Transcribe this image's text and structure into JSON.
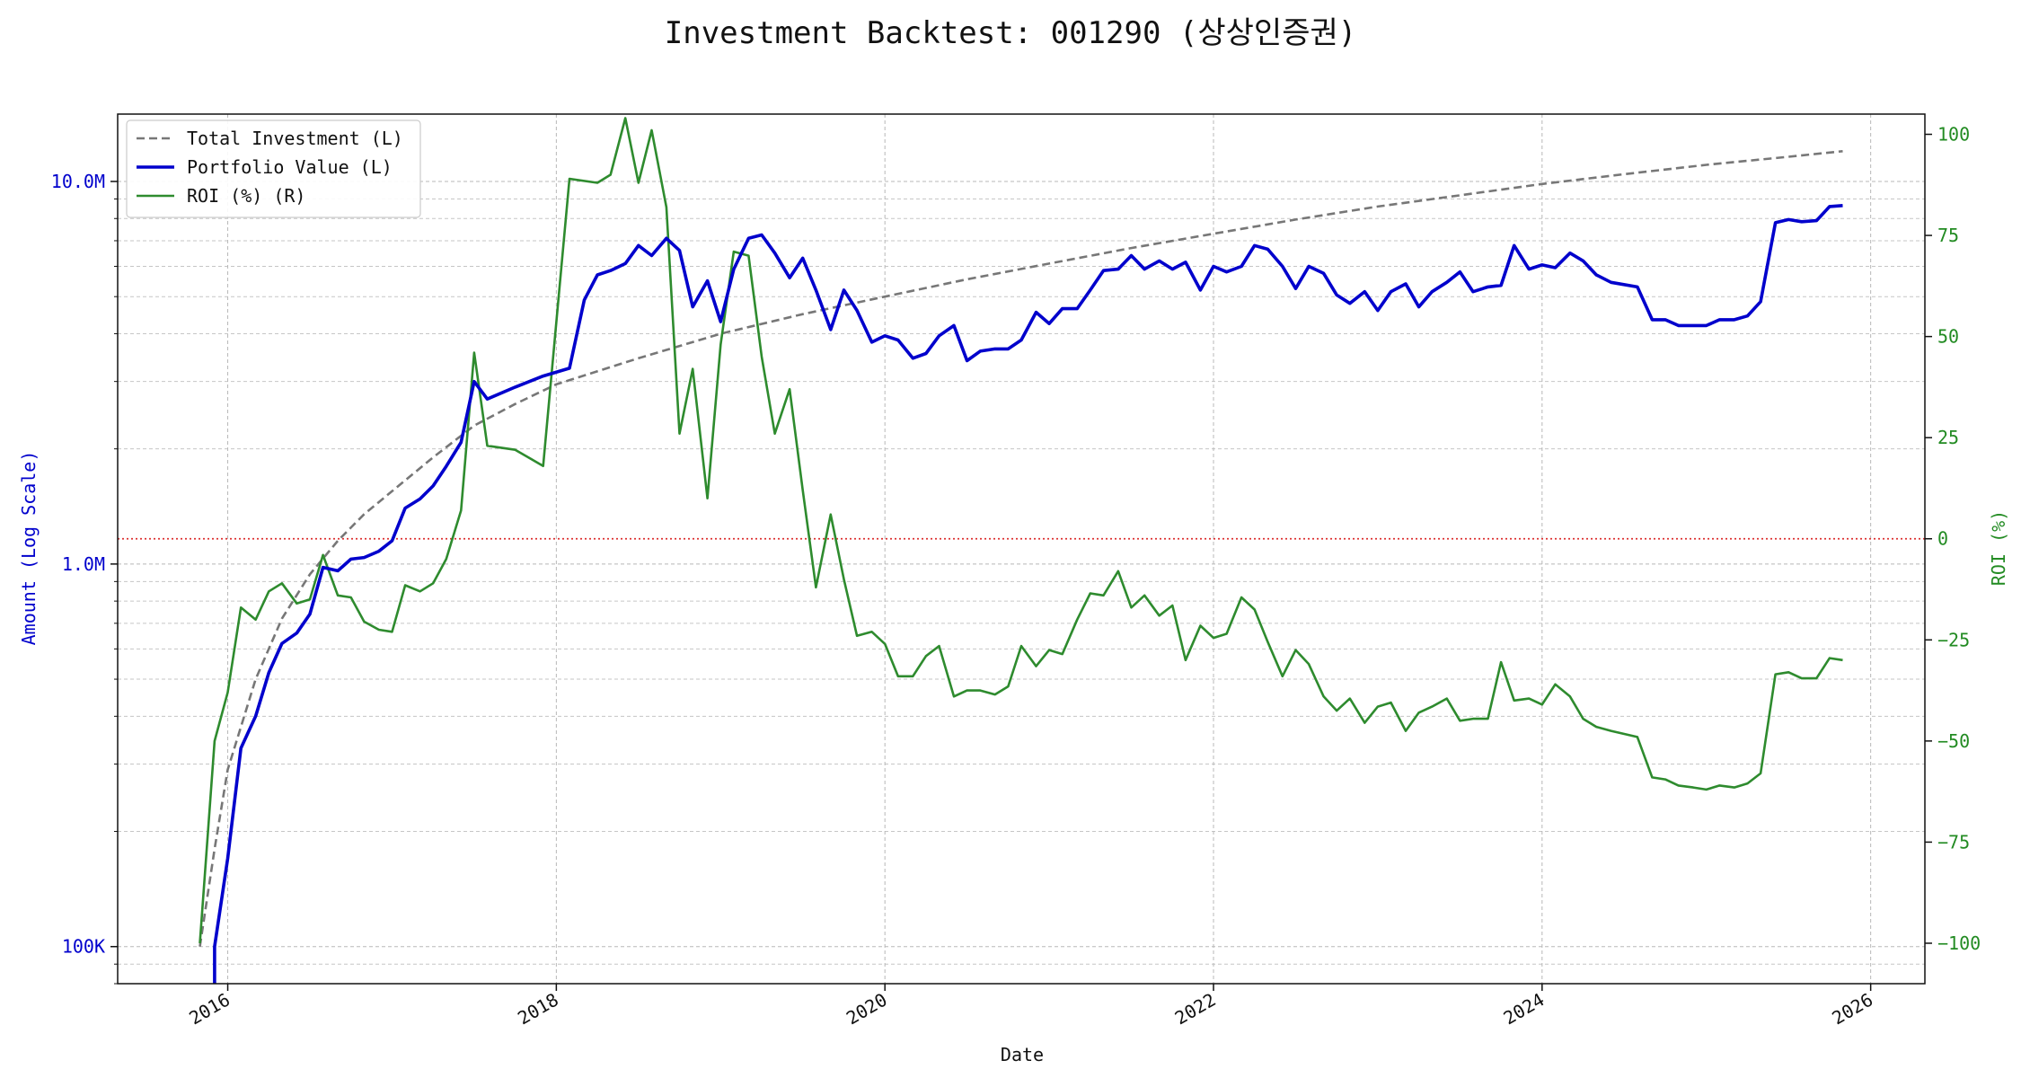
{
  "chart_data": {
    "type": "line",
    "title": "Investment Backtest: 001290 (상상인증권)",
    "xlabel": "Date",
    "ylabel_left": "Amount (Log Scale)",
    "ylabel_right": "ROI (%)",
    "left_axis": {
      "scale": "log",
      "range": [
        80000,
        15000000
      ],
      "tick_values": [
        100000,
        1000000,
        10000000
      ],
      "tick_labels": [
        "100K",
        "1.0M",
        "10.0M"
      ]
    },
    "right_axis": {
      "scale": "linear",
      "range": [
        -110,
        105
      ],
      "tick_values": [
        -100,
        -75,
        -50,
        -25,
        0,
        25,
        50,
        75,
        100
      ],
      "tick_labels": [
        "−100",
        "−75",
        "−50",
        "−25",
        "0",
        "25",
        "50",
        "75",
        "100"
      ]
    },
    "x_axis": {
      "range": [
        2015.33,
        2026.33
      ],
      "tick_values": [
        2016,
        2018,
        2020,
        2022,
        2024,
        2026
      ],
      "tick_labels": [
        "2016",
        "2018",
        "2020",
        "2022",
        "2024",
        "2026"
      ]
    },
    "grid": true,
    "legend_placement": "upper-left",
    "reference_line": {
      "axis": "right",
      "value": 0,
      "color": "#dd3333"
    },
    "colors": {
      "total_investment": "#777777",
      "portfolio_value": "#0000cc",
      "roi": "#2e8b2e",
      "reference": "#dd3333"
    },
    "series": [
      {
        "name": "Total Investment (L)",
        "axis": "left",
        "style": "dashed",
        "x": [
          2015.83,
          2015.92,
          2016.0,
          2016.17,
          2016.33,
          2016.5,
          2016.67,
          2016.83,
          2017.0,
          2017.25,
          2017.5,
          2017.75,
          2018.0,
          2018.5,
          2019.0,
          2019.5,
          2020.0,
          2020.5,
          2021.0,
          2021.5,
          2022.0,
          2022.5,
          2023.0,
          2023.5,
          2024.0,
          2024.5,
          2025.0,
          2025.5,
          2025.83
        ],
        "values": [
          100000,
          180000,
          290000,
          500000,
          720000,
          940000,
          1150000,
          1350000,
          1550000,
          1900000,
          2300000,
          2620000,
          2950000,
          3450000,
          4000000,
          4500000,
          5000000,
          5550000,
          6100000,
          6700000,
          7300000,
          7950000,
          8600000,
          9200000,
          9850000,
          10450000,
          11050000,
          11600000,
          12000000
        ]
      },
      {
        "name": "Portfolio Value (L)",
        "axis": "left",
        "style": "solid",
        "x": [
          2015.92,
          2015.92,
          2016.0,
          2016.08,
          2016.17,
          2016.25,
          2016.33,
          2016.42,
          2016.5,
          2016.58,
          2016.67,
          2016.75,
          2016.83,
          2016.92,
          2017.0,
          2017.08,
          2017.17,
          2017.25,
          2017.33,
          2017.42,
          2017.5,
          2017.58,
          2017.75,
          2017.92,
          2018.08,
          2018.17,
          2018.25,
          2018.33,
          2018.42,
          2018.5,
          2018.58,
          2018.67,
          2018.75,
          2018.83,
          2018.92,
          2019.0,
          2019.08,
          2019.17,
          2019.25,
          2019.33,
          2019.42,
          2019.5,
          2019.58,
          2019.67,
          2019.75,
          2019.83,
          2019.92,
          2020.0,
          2020.08,
          2020.17,
          2020.25,
          2020.33,
          2020.42,
          2020.5,
          2020.58,
          2020.67,
          2020.75,
          2020.83,
          2020.92,
          2021.0,
          2021.08,
          2021.17,
          2021.25,
          2021.33,
          2021.42,
          2021.5,
          2021.58,
          2021.67,
          2021.75,
          2021.83,
          2021.92,
          2022.0,
          2022.08,
          2022.17,
          2022.25,
          2022.33,
          2022.42,
          2022.5,
          2022.58,
          2022.67,
          2022.75,
          2022.83,
          2022.92,
          2023.0,
          2023.08,
          2023.17,
          2023.25,
          2023.33,
          2023.42,
          2023.5,
          2023.58,
          2023.67,
          2023.75,
          2023.83,
          2023.92,
          2024.0,
          2024.08,
          2024.17,
          2024.25,
          2024.33,
          2024.42,
          2024.58,
          2024.67,
          2024.75,
          2024.83,
          2024.92,
          2025.0,
          2025.08,
          2025.17,
          2025.25,
          2025.33,
          2025.42,
          2025.5,
          2025.58,
          2025.67,
          2025.75,
          2025.83
        ],
        "values": [
          60000,
          100000,
          170000,
          330000,
          400000,
          520000,
          620000,
          660000,
          740000,
          980000,
          960000,
          1030000,
          1040000,
          1080000,
          1150000,
          1400000,
          1480000,
          1600000,
          1800000,
          2080000,
          3000000,
          2700000,
          2900000,
          3100000,
          3250000,
          4900000,
          5700000,
          5850000,
          6100000,
          6800000,
          6400000,
          7100000,
          6600000,
          4700000,
          5500000,
          4300000,
          5900000,
          7100000,
          7250000,
          6500000,
          5600000,
          6300000,
          5200000,
          4100000,
          5200000,
          4600000,
          3800000,
          3950000,
          3850000,
          3450000,
          3550000,
          3950000,
          4200000,
          3400000,
          3600000,
          3650000,
          3650000,
          3850000,
          4550000,
          4250000,
          4650000,
          4650000,
          5200000,
          5850000,
          5900000,
          6400000,
          5900000,
          6200000,
          5900000,
          6150000,
          5200000,
          6000000,
          5800000,
          6000000,
          6800000,
          6650000,
          6000000,
          5250000,
          6000000,
          5750000,
          5050000,
          4800000,
          5150000,
          4600000,
          5150000,
          5400000,
          4700000,
          5150000,
          5450000,
          5800000,
          5150000,
          5300000,
          5350000,
          6800000,
          5900000,
          6050000,
          5950000,
          6500000,
          6200000,
          5700000,
          5450000,
          5300000,
          4350000,
          4350000,
          4200000,
          4200000,
          4200000,
          4350000,
          4350000,
          4450000,
          4850000,
          7800000,
          7950000,
          7850000,
          7900000,
          8600000,
          8650000
        ]
      },
      {
        "name": "ROI (%) (R)",
        "axis": "right",
        "style": "solid",
        "x": [
          2015.83,
          2015.92,
          2016.0,
          2016.08,
          2016.17,
          2016.25,
          2016.33,
          2016.42,
          2016.5,
          2016.58,
          2016.67,
          2016.75,
          2016.83,
          2016.92,
          2017.0,
          2017.08,
          2017.17,
          2017.25,
          2017.33,
          2017.42,
          2017.5,
          2017.58,
          2017.75,
          2017.92,
          2018.08,
          2018.25,
          2018.33,
          2018.42,
          2018.5,
          2018.58,
          2018.67,
          2018.75,
          2018.83,
          2018.92,
          2019.0,
          2019.08,
          2019.17,
          2019.25,
          2019.33,
          2019.42,
          2019.5,
          2019.58,
          2019.67,
          2019.75,
          2019.83,
          2019.92,
          2020.0,
          2020.08,
          2020.17,
          2020.25,
          2020.33,
          2020.42,
          2020.5,
          2020.58,
          2020.67,
          2020.75,
          2020.83,
          2020.92,
          2021.0,
          2021.08,
          2021.17,
          2021.25,
          2021.33,
          2021.42,
          2021.5,
          2021.58,
          2021.67,
          2021.75,
          2021.83,
          2021.92,
          2022.0,
          2022.08,
          2022.17,
          2022.25,
          2022.33,
          2022.42,
          2022.5,
          2022.58,
          2022.67,
          2022.75,
          2022.83,
          2022.92,
          2023.0,
          2023.08,
          2023.17,
          2023.25,
          2023.33,
          2023.42,
          2023.5,
          2023.58,
          2023.67,
          2023.75,
          2023.83,
          2023.92,
          2024.0,
          2024.08,
          2024.17,
          2024.25,
          2024.33,
          2024.42,
          2024.58,
          2024.67,
          2024.75,
          2024.83,
          2024.92,
          2025.0,
          2025.08,
          2025.17,
          2025.25,
          2025.33,
          2025.42,
          2025.5,
          2025.58,
          2025.67,
          2025.75,
          2025.83
        ],
        "values": [
          -100,
          -50,
          -38,
          -17,
          -20,
          -13,
          -11,
          -16,
          -15,
          -4,
          -14,
          -14.5,
          -20.5,
          -22.5,
          -23,
          -11.5,
          -13,
          -11,
          -5,
          7,
          46,
          23,
          22,
          18,
          89,
          88,
          90,
          104,
          88,
          101,
          82,
          26,
          42,
          10,
          48,
          71,
          70,
          45,
          26,
          37,
          12,
          -12,
          6,
          -10,
          -24,
          -23,
          -26,
          -34,
          -34,
          -29,
          -26.5,
          -39,
          -37.5,
          -37.5,
          -38.5,
          -36.5,
          -26.5,
          -31.5,
          -27.5,
          -28.5,
          -20,
          -13.5,
          -14,
          -8,
          -17,
          -14,
          -19,
          -16.5,
          -30,
          -21.5,
          -24.5,
          -23.5,
          -14.5,
          -17.5,
          -25.5,
          -34,
          -27.5,
          -31,
          -39,
          -42.5,
          -39.5,
          -45.5,
          -41.5,
          -40.5,
          -47.5,
          -43,
          -41.5,
          -39.5,
          -45,
          -44.5,
          -44.5,
          -30.5,
          -40,
          -39.5,
          -41,
          -36,
          -39,
          -44.5,
          -46.5,
          -47.5,
          -49,
          -59,
          -59.5,
          -61,
          -61.5,
          -62,
          -61,
          -61.5,
          -60.5,
          -58,
          -33.5,
          -33,
          -34.5,
          -34.5,
          -29.5,
          -30
        ]
      }
    ]
  }
}
